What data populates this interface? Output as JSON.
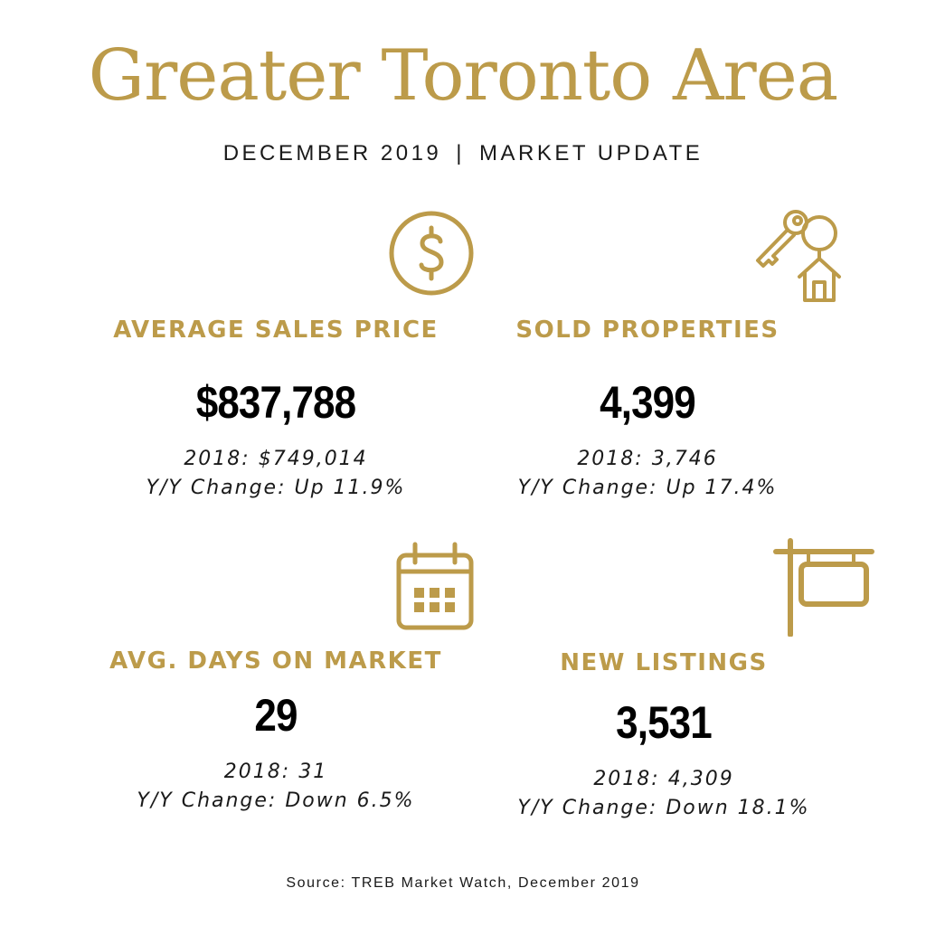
{
  "title": "Greater Toronto Area",
  "subtitle": {
    "left": "DECEMBER 2019",
    "separator": "|",
    "right": "MARKET UPDATE"
  },
  "stats": {
    "avg_price": {
      "label": "AVERAGE SALES PRICE",
      "value": "$837,788",
      "prev": "2018: $749,014",
      "change": "Y/Y Change: Up 11.9%",
      "icon": "dollar-circle-icon"
    },
    "sold": {
      "label": "SOLD PROPERTIES",
      "value": "4,399",
      "prev": "2018: 3,746",
      "change": "Y/Y Change: Up 17.4%",
      "icon": "key-house-icon"
    },
    "days": {
      "label": "AVG. DAYS ON MARKET",
      "value": "29",
      "prev": "2018: 31",
      "change": "Y/Y Change: Down 6.5%",
      "icon": "calendar-icon"
    },
    "listings": {
      "label": "NEW LISTINGS",
      "value": "3,531",
      "prev": "2018: 4,309",
      "change": "Y/Y Change: Down 18.1%",
      "icon": "sign-post-icon"
    }
  },
  "source": "Source: TREB Market Watch, December 2019",
  "colors": {
    "accent": "#BC9B4A",
    "text": "#1a1a1a",
    "value": "#000000"
  }
}
